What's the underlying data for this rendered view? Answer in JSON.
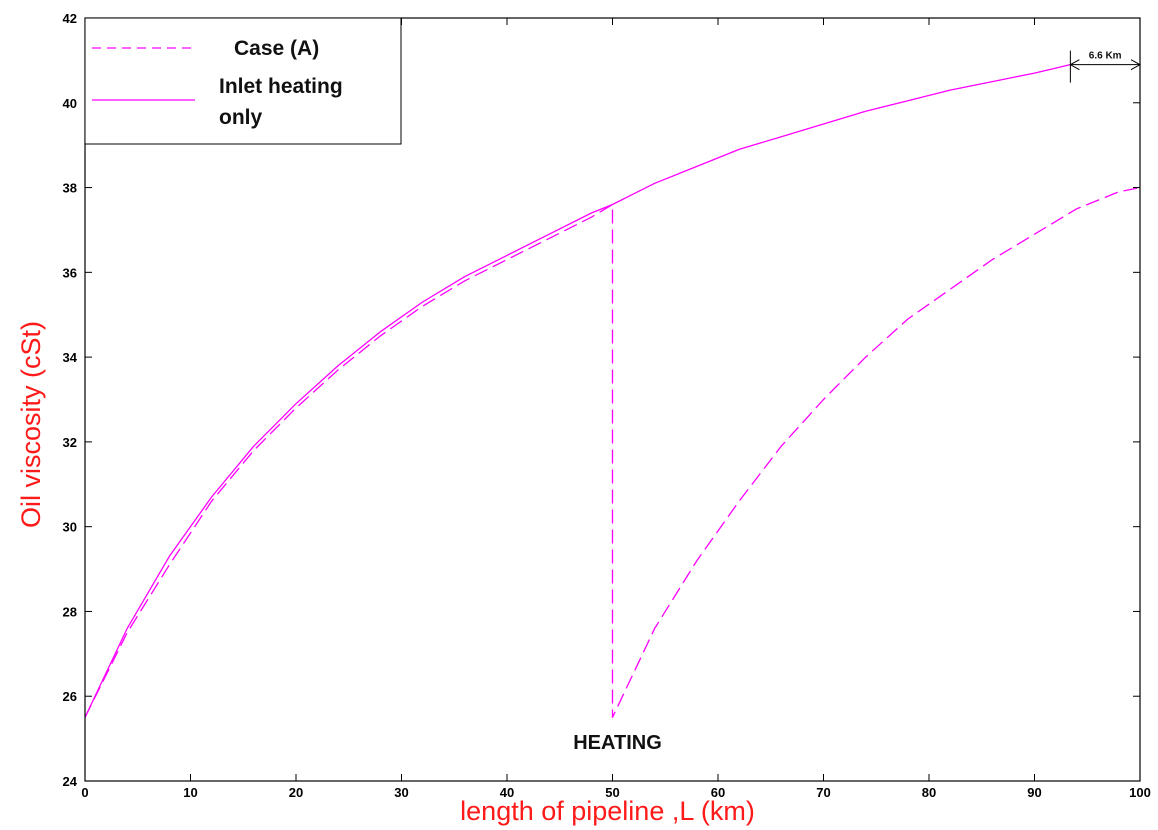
{
  "chart_data": {
    "type": "line",
    "title": "",
    "xlabel": "length of pipeline ,L (km)",
    "ylabel": "Oil viscosity  (cSt)",
    "xlim": [
      0,
      100
    ],
    "ylim": [
      24,
      42
    ],
    "xticks": [
      0,
      10,
      20,
      30,
      40,
      50,
      60,
      70,
      80,
      90,
      100
    ],
    "yticks": [
      24,
      26,
      28,
      30,
      32,
      34,
      36,
      38,
      40,
      42
    ],
    "grid": false,
    "legend_position": "top-left",
    "colors": {
      "series": "#ff00ff",
      "axis_title": "#ff1a1a"
    },
    "series": [
      {
        "name": "Case (A)",
        "style": "dashed",
        "x": [
          0,
          4,
          8,
          12,
          16,
          20,
          24,
          28,
          32,
          36,
          40,
          44,
          48,
          50,
          50,
          54,
          58,
          62,
          66,
          70,
          74,
          78,
          82,
          86,
          90,
          94,
          98,
          100
        ],
        "y": [
          25.5,
          27.5,
          29.1,
          30.6,
          31.8,
          32.8,
          33.7,
          34.5,
          35.2,
          35.8,
          36.3,
          36.8,
          37.3,
          37.6,
          25.5,
          27.6,
          29.2,
          30.6,
          31.9,
          33.0,
          34.0,
          34.9,
          35.6,
          36.3,
          36.9,
          37.5,
          37.9,
          38.0
        ]
      },
      {
        "name": "Inlet heating only",
        "style": "solid",
        "x": [
          0,
          4,
          8,
          12,
          16,
          20,
          24,
          28,
          32,
          36,
          40,
          44,
          48,
          50,
          54,
          58,
          62,
          66,
          70,
          74,
          78,
          82,
          86,
          90,
          93.4
        ],
        "y": [
          25.5,
          27.6,
          29.3,
          30.7,
          31.9,
          32.9,
          33.8,
          34.6,
          35.3,
          35.9,
          36.4,
          36.9,
          37.4,
          37.6,
          38.1,
          38.5,
          38.9,
          39.2,
          39.5,
          39.8,
          40.05,
          40.3,
          40.5,
          40.7,
          40.9
        ]
      }
    ],
    "annotations": [
      {
        "text": "HEATING",
        "x": 50,
        "y": 24.8
      },
      {
        "text": "6.6 Km",
        "x_start": 93.4,
        "x_end": 100,
        "y": 40.9
      }
    ],
    "legend": {
      "case_a": "Case (A)",
      "inlet_line1": "Inlet heating",
      "inlet_line2": "only"
    }
  }
}
